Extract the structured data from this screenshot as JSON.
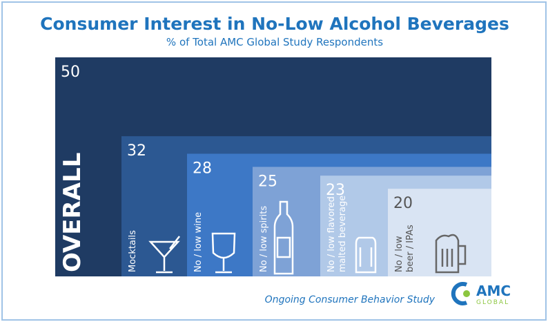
{
  "chart_data": {
    "type": "nested",
    "title": "Consumer Interest in No-Low Alcohol Beverages",
    "subtitle": "% of Total AMC Global Study Respondents",
    "categories": [
      [
        "OVERALL"
      ],
      [
        "Mocktails"
      ],
      [
        "No / low wine"
      ],
      [
        "No / low spirits"
      ],
      [
        "No / low flavored",
        "malted beverage"
      ],
      [
        "No / low",
        "beer / IPAs"
      ]
    ],
    "values": [
      50,
      32,
      28,
      25,
      23,
      20
    ],
    "colors": [
      "#1f3b63",
      "#2c5892",
      "#3d78c6",
      "#7ea2d6",
      "#b1c9e8",
      "#d9e4f3"
    ],
    "label_colors": [
      "#ffffff",
      "#ffffff",
      "#ffffff",
      "#ffffff",
      "#ffffff",
      "#555555"
    ],
    "footer": "Ongoing Consumer Behavior Study",
    "logo": {
      "name": "AMC",
      "sub": "GLOBAL"
    }
  }
}
